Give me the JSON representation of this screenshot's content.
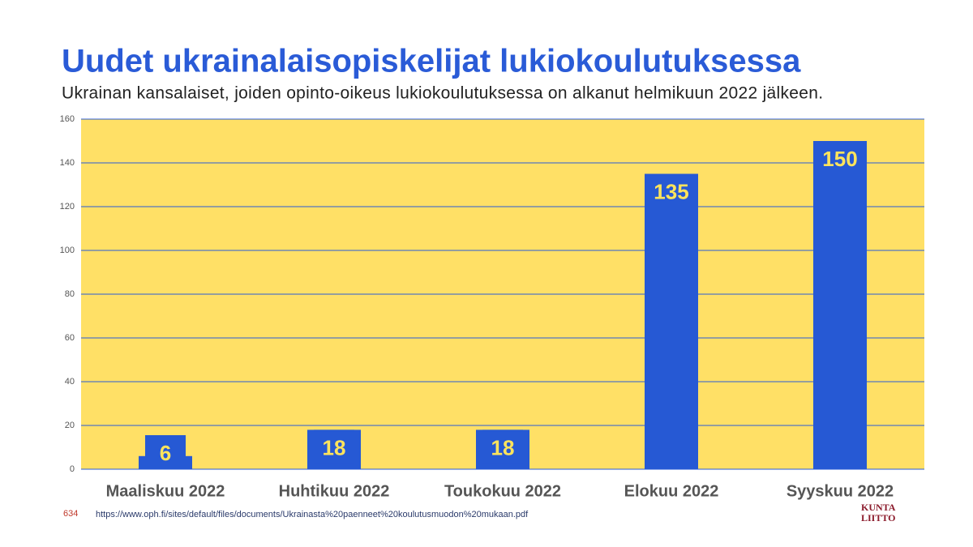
{
  "chart_data": {
    "type": "bar",
    "title": "Uudet ukrainalaisopiskelijat lukiokoulutuksessa",
    "subtitle": "Ukrainan kansalaiset, joiden opinto-oikeus lukiokoulutuksessa on alkanut helmikuun 2022 jälkeen.",
    "categories": [
      "Maaliskuu 2022",
      "Huhtikuu 2022",
      "Toukokuu 2022",
      "Elokuu 2022",
      "Syyskuu 2022"
    ],
    "values": [
      6,
      18,
      18,
      135,
      150
    ],
    "color": "#2659d4",
    "background": "#ffe066",
    "ylim": [
      0,
      160
    ],
    "yticks": [
      0,
      20,
      40,
      60,
      80,
      100,
      120,
      140,
      160
    ],
    "grid": true
  },
  "footer": {
    "page_number": "634",
    "source": "https://www.oph.fi/sites/default/files/documents/Ukrainasta%20paenneet%20koulutusmuodon%20mukaan.pdf",
    "logo": [
      "KUNTA",
      "LIITTO"
    ]
  }
}
